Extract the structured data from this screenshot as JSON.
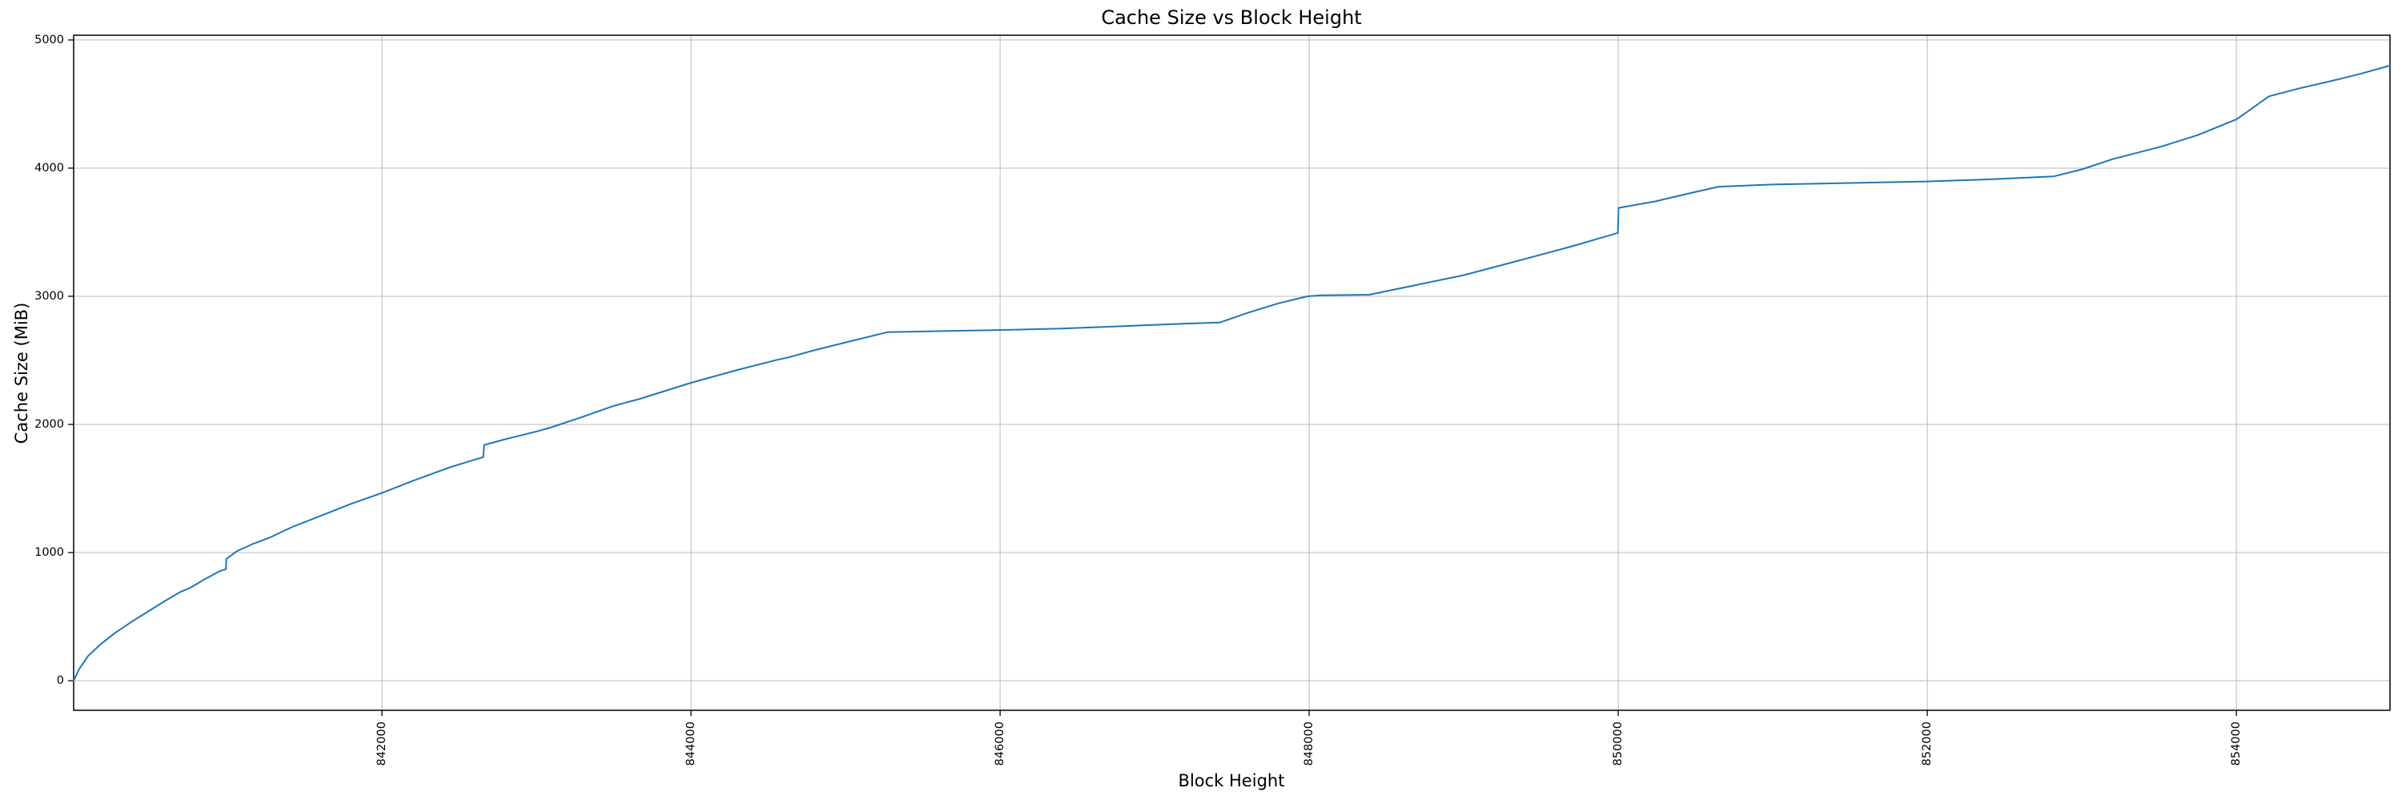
{
  "figure": {
    "background": "#ffffff"
  },
  "chart_data": {
    "type": "line",
    "title": "Cache Size vs Block Height",
    "xlabel": "Block Height",
    "ylabel": "Cache Size (MiB)",
    "xlim": [
      840005,
      854994
    ],
    "ylim": [
      -231,
      5037
    ],
    "grid": true,
    "legend": null,
    "line_color": "#1f77b4",
    "grid_color": "#b9b9b9",
    "spine_color": "#000000",
    "x_ticks": [
      {
        "value": 842000,
        "label": "842000"
      },
      {
        "value": 844000,
        "label": "844000"
      },
      {
        "value": 846000,
        "label": "846000"
      },
      {
        "value": 848000,
        "label": "848000"
      },
      {
        "value": 850000,
        "label": "850000"
      },
      {
        "value": 852000,
        "label": "852000"
      },
      {
        "value": 854000,
        "label": "854000"
      }
    ],
    "y_ticks": [
      {
        "value": 0,
        "label": "0"
      },
      {
        "value": 1000,
        "label": "1000"
      },
      {
        "value": 2000,
        "label": "2000"
      },
      {
        "value": 3000,
        "label": "3000"
      },
      {
        "value": 4000,
        "label": "4000"
      },
      {
        "value": 5000,
        "label": "5000"
      }
    ],
    "series": [
      {
        "name": "cache-size",
        "points": [
          [
            840005,
            0
          ],
          [
            840040,
            90
          ],
          [
            840100,
            195
          ],
          [
            840180,
            285
          ],
          [
            840270,
            370
          ],
          [
            840380,
            460
          ],
          [
            840500,
            550
          ],
          [
            840620,
            640
          ],
          [
            840700,
            695
          ],
          [
            840760,
            725
          ],
          [
            840850,
            790
          ],
          [
            840950,
            855
          ],
          [
            840990,
            870
          ],
          [
            840993,
            950
          ],
          [
            841060,
            1010
          ],
          [
            841160,
            1065
          ],
          [
            841270,
            1115
          ],
          [
            841420,
            1200
          ],
          [
            841600,
            1285
          ],
          [
            841800,
            1380
          ],
          [
            842000,
            1465
          ],
          [
            842200,
            1560
          ],
          [
            842450,
            1670
          ],
          [
            842655,
            1745
          ],
          [
            842662,
            1840
          ],
          [
            842800,
            1885
          ],
          [
            843000,
            1945
          ],
          [
            843090,
            1975
          ],
          [
            843300,
            2060
          ],
          [
            843500,
            2145
          ],
          [
            843670,
            2200
          ],
          [
            844000,
            2325
          ],
          [
            844300,
            2425
          ],
          [
            844560,
            2505
          ],
          [
            844620,
            2520
          ],
          [
            844770,
            2570
          ],
          [
            845000,
            2640
          ],
          [
            845270,
            2720
          ],
          [
            845600,
            2728
          ],
          [
            846000,
            2737
          ],
          [
            846400,
            2748
          ],
          [
            846800,
            2767
          ],
          [
            847200,
            2787
          ],
          [
            847420,
            2795
          ],
          [
            847600,
            2870
          ],
          [
            847800,
            2945
          ],
          [
            847990,
            3000
          ],
          [
            848080,
            3008
          ],
          [
            848390,
            3012
          ],
          [
            848700,
            3090
          ],
          [
            849000,
            3165
          ],
          [
            849345,
            3275
          ],
          [
            849700,
            3390
          ],
          [
            849998,
            3495
          ],
          [
            850002,
            3690
          ],
          [
            850240,
            3740
          ],
          [
            850450,
            3800
          ],
          [
            850650,
            3855
          ],
          [
            851000,
            3872
          ],
          [
            851500,
            3884
          ],
          [
            852000,
            3896
          ],
          [
            852400,
            3912
          ],
          [
            852820,
            3936
          ],
          [
            853000,
            3990
          ],
          [
            853200,
            4070
          ],
          [
            853520,
            4170
          ],
          [
            853750,
            4258
          ],
          [
            854000,
            4380
          ],
          [
            854060,
            4430
          ],
          [
            854210,
            4560
          ],
          [
            854400,
            4620
          ],
          [
            854650,
            4690
          ],
          [
            854800,
            4735
          ],
          [
            854994,
            4800
          ]
        ]
      }
    ]
  }
}
